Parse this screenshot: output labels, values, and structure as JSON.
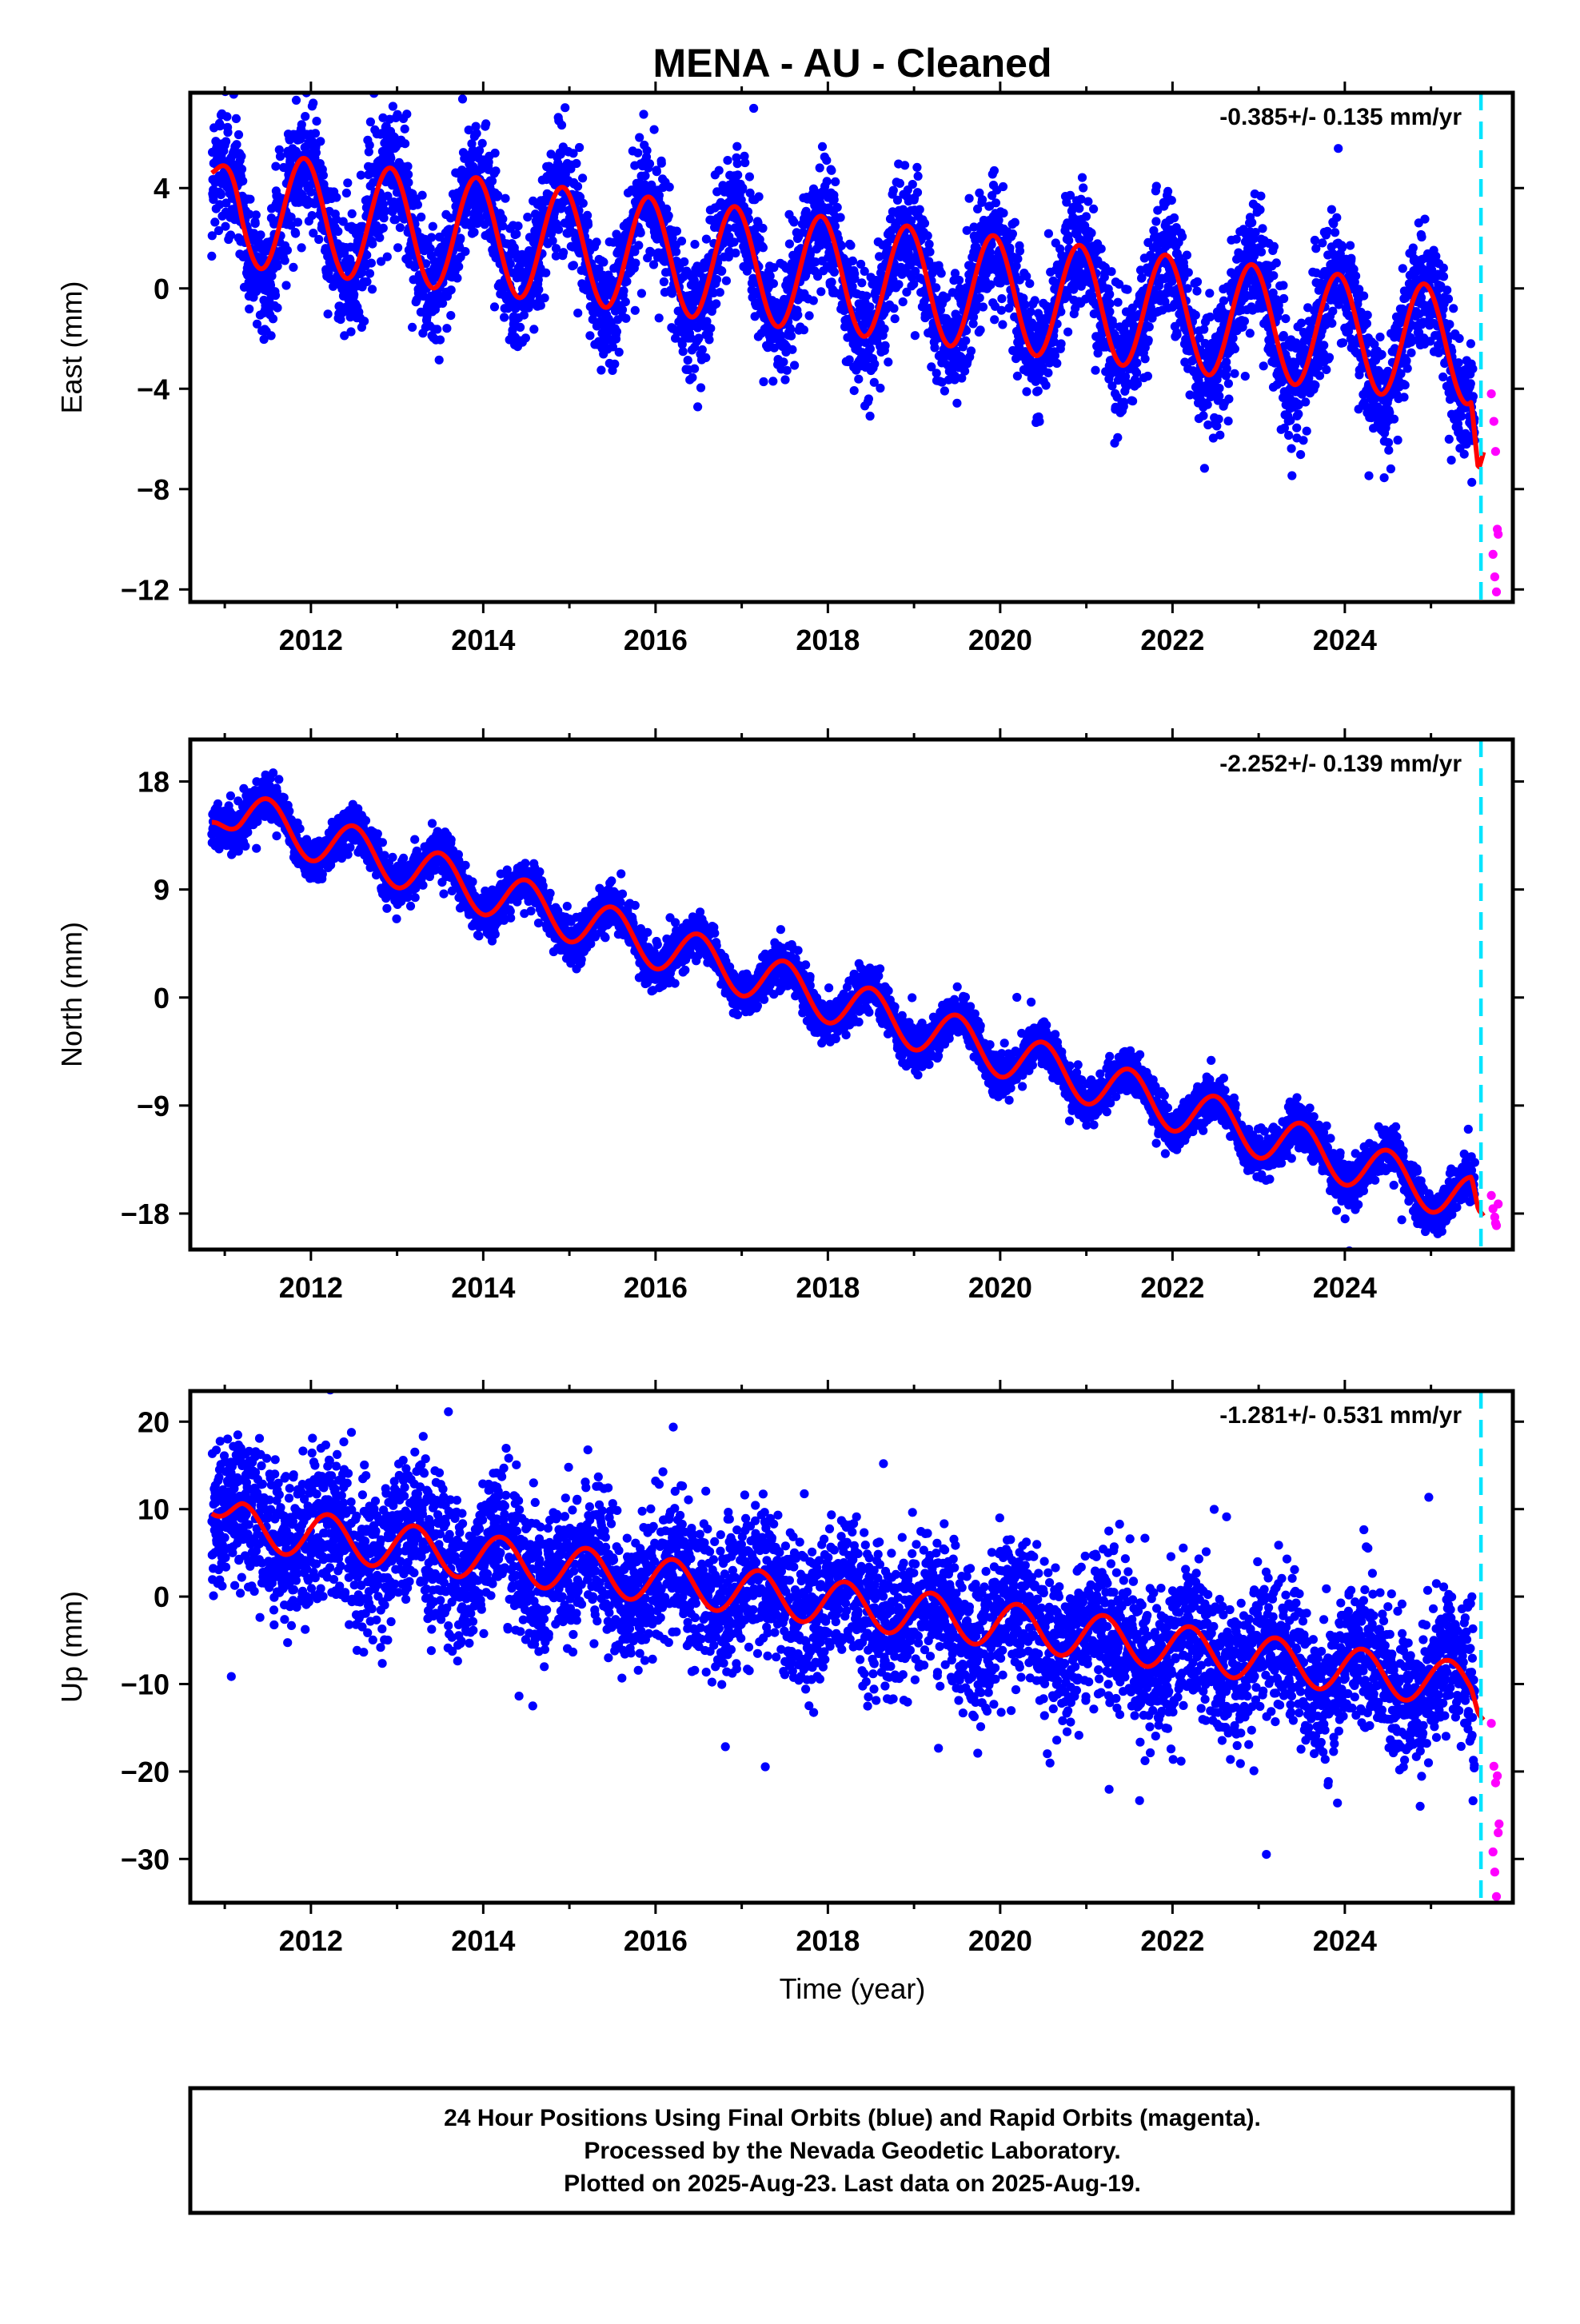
{
  "title": "MENA  - AU - Cleaned",
  "xlabel": "Time (year)",
  "footer": {
    "lines": [
      "24 Hour Positions Using Final Orbits (blue) and Rapid Orbits (magenta).",
      "Processed by the Nevada Geodetic Laboratory.",
      "Plotted on 2025-Aug-23. Last data on 2025-Aug-19."
    ]
  },
  "colors": {
    "final_orbits": "#0000ff",
    "rapid_orbits": "#ff00ff",
    "model_fit": "#ff0000",
    "break_line": "#00e5ff"
  },
  "chart_data": [
    {
      "type": "scatter",
      "component": "east",
      "ylabel": "East (mm)",
      "rate": "-0.385+/- 0.135 mm/yr",
      "xlim": [
        2010.6,
        2025.95
      ],
      "ylim": [
        -12.5,
        7.8
      ],
      "xticks": [
        2012,
        2014,
        2016,
        2018,
        2020,
        2022,
        2024
      ],
      "yticks": [
        4,
        0,
        -4,
        -8,
        -12
      ],
      "ytick_labels": [
        "4",
        "0",
        "−4",
        "−8",
        "−12"
      ],
      "break_year": 2025.5,
      "model": {
        "start_year": 2010.85,
        "end_year": 2025.55,
        "value_at_start": 3.3,
        "rate_mm_per_yr": -0.385,
        "annual_amplitude": 2.3,
        "annual_peak_decimal": 0.92,
        "extra": {
          "start_value": 4.6,
          "final_drop": -3.3
        }
      },
      "final_series": {
        "scatter_mm": 1.2,
        "n_points": 5300
      },
      "rapid_series": {
        "years": [
          2025.54,
          2025.57,
          2025.59,
          2025.62,
          2025.56,
          2025.58,
          2025.6,
          2025.61
        ],
        "values": [
          -4.2,
          -5.3,
          -6.5,
          -9.8,
          -10.6,
          -11.5,
          -12.1,
          -9.6
        ]
      }
    },
    {
      "type": "scatter",
      "component": "north",
      "ylabel": "North (mm)",
      "rate": "-2.252+/- 0.139 mm/yr",
      "xlim": [
        2010.6,
        2025.95
      ],
      "ylim": [
        -21,
        21.5
      ],
      "xticks": [
        2012,
        2014,
        2016,
        2018,
        2020,
        2022,
        2024
      ],
      "yticks": [
        18,
        9,
        0,
        -9,
        -18
      ],
      "ytick_labels": [
        "18",
        "9",
        "0",
        "−9",
        "−18"
      ],
      "break_year": 2025.5,
      "model": {
        "start_year": 2010.85,
        "end_year": 2025.55,
        "value_at_start": 16.0,
        "rate_mm_per_yr": -2.252,
        "annual_amplitude": 2.0,
        "annual_peak_decimal": 0.5,
        "extra": {
          "start_value": 14.6,
          "final_drop": -2.5
        }
      },
      "final_series": {
        "scatter_mm": 0.9,
        "n_points": 5300
      },
      "rapid_series": {
        "years": [
          2025.54,
          2025.56,
          2025.58,
          2025.6,
          2025.62,
          2025.59
        ],
        "values": [
          -16.5,
          -17.6,
          -18.3,
          -19.0,
          -17.2,
          -18.8
        ]
      }
    },
    {
      "type": "scatter",
      "component": "up",
      "ylabel": "Up (mm)",
      "rate": "-1.281+/- 0.531 mm/yr",
      "xlim": [
        2010.6,
        2025.95
      ],
      "ylim": [
        -35,
        23.5
      ],
      "xticks": [
        2012,
        2014,
        2016,
        2018,
        2020,
        2022,
        2024
      ],
      "yticks": [
        20,
        10,
        0,
        -10,
        -20,
        -30
      ],
      "ytick_labels": [
        "20",
        "10",
        "0",
        "−10",
        "−20",
        "−30"
      ],
      "break_year": 2025.5,
      "model": {
        "start_year": 2010.85,
        "end_year": 2025.55,
        "value_at_start": 8.5,
        "rate_mm_per_yr": -1.281,
        "annual_amplitude": 2.6,
        "annual_peak_decimal": 0.2,
        "extra": {
          "start_value": 9.5,
          "final_drop": -1.5
        }
      },
      "final_series": {
        "scatter_mm": 4.2,
        "n_points": 5300
      },
      "rapid_series": {
        "years": [
          2025.54,
          2025.57,
          2025.59,
          2025.62,
          2025.56,
          2025.58,
          2025.6,
          2025.61,
          2025.63
        ],
        "values": [
          -14.5,
          -19.4,
          -21.3,
          -27.0,
          -29.2,
          -31.5,
          -34.3,
          -20.5,
          -26.0
        ]
      }
    }
  ]
}
